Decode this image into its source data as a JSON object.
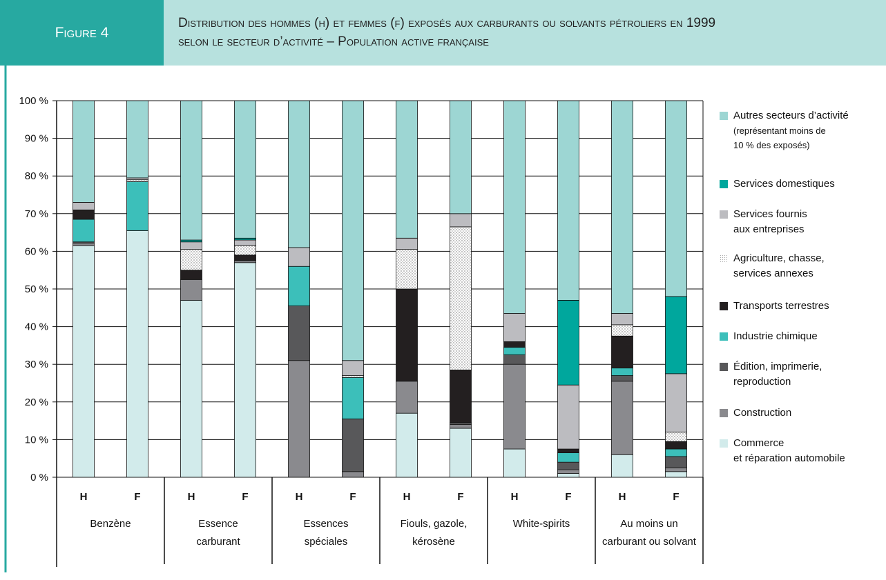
{
  "header": {
    "figure": "Figure 4",
    "title": "Distribution des hommes (h) et femmes (f) exposés aux carburants ou solvants pétroliers en 1999\nselon le secteur d’activité – Population active française"
  },
  "chart_data": {
    "type": "stacked_bar",
    "categories": [
      "H",
      "F",
      "H",
      "F",
      "H",
      "F",
      "H",
      "F",
      "H",
      "F",
      "H",
      "F"
    ],
    "groups": [
      "Benzène",
      "Essence\ncarburant",
      "Essences\nspéciales",
      "Fiouls, gazole,\nkérosène",
      "White-spirits",
      "Au moins un\ncarburant ou solvant"
    ],
    "ylim": [
      0,
      100
    ],
    "yticks": [
      {
        "value": 0,
        "label": "0 %"
      },
      {
        "value": 10,
        "label": "10 %"
      },
      {
        "value": 20,
        "label": "20 %"
      },
      {
        "value": 30,
        "label": "30 %"
      },
      {
        "value": 40,
        "label": "40 %"
      },
      {
        "value": 50,
        "label": "50 %"
      },
      {
        "value": 60,
        "label": "60 %"
      },
      {
        "value": 70,
        "label": "70 %"
      },
      {
        "value": 80,
        "label": "80 %"
      },
      {
        "value": 90,
        "label": "90 %"
      },
      {
        "value": 100,
        "label": "100 %"
      }
    ],
    "grid": true,
    "series": [
      {
        "name": "Commerce\net réparation automobile",
        "color": "#d2ebeb",
        "values": [
          61.5,
          65.5,
          47,
          57,
          0,
          0,
          17,
          13,
          7.5,
          1,
          6,
          1.5
        ]
      },
      {
        "name": "Construction",
        "color": "#8a8a8e",
        "values": [
          0.7,
          0,
          5.5,
          0.5,
          31,
          1.5,
          8.5,
          1,
          22.5,
          1,
          19.5,
          1
        ]
      },
      {
        "name": "Édition, imprimerie,\nreproduction",
        "color": "#58585a",
        "values": [
          0.3,
          0,
          0,
          0,
          14.5,
          14,
          0,
          0.5,
          2.5,
          2,
          1.5,
          3
        ]
      },
      {
        "name": "Industrie chimique",
        "color": "#3cbfba",
        "values": [
          6,
          13,
          0,
          0,
          10.5,
          11,
          0,
          0,
          2,
          2.5,
          2,
          2
        ]
      },
      {
        "name": "Transports terrestres",
        "color": "#231f20",
        "values": [
          2.5,
          0,
          2.5,
          1.5,
          0,
          0,
          24.5,
          14,
          1.5,
          1,
          8.5,
          2
        ]
      },
      {
        "name": "Agriculture, chasse,\nservices annexes",
        "color": "#c8c8c8",
        "pattern": "dots",
        "values": [
          0,
          0.5,
          5.5,
          2.5,
          0,
          0.5,
          10.5,
          38,
          0,
          0,
          3,
          2.5
        ]
      },
      {
        "name": "Services fournis\naux entreprises",
        "color": "#bcbcc0",
        "values": [
          2,
          0.5,
          2,
          1.5,
          5,
          4,
          3,
          3.5,
          7.5,
          17,
          3,
          15.5
        ]
      },
      {
        "name": "Services domestiques",
        "color": "#00a79d",
        "values": [
          0,
          0,
          0.5,
          0.5,
          0,
          0,
          0,
          0,
          0,
          22.5,
          0,
          20.5
        ]
      },
      {
        "name": "Autres secteurs d’activité",
        "note": "(représentant moins de\n10 % des exposés)",
        "color": "#9dd6d3",
        "values": [
          27,
          20.5,
          37,
          36.5,
          39,
          69,
          36.5,
          30,
          56.5,
          53,
          56.5,
          52
        ]
      }
    ]
  }
}
